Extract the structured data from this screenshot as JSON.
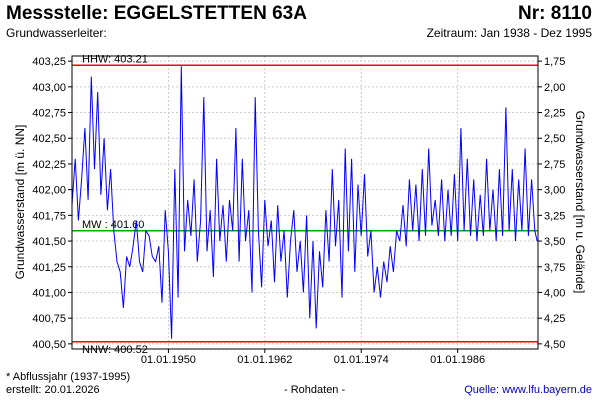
{
  "header": {
    "title": "Messstelle: EGGELSTETTEN 63A",
    "number": "Nr: 8110",
    "aquifer": "Grundwasserleiter:",
    "period": "Zeitraum: Jan 1938 - Dez 1995"
  },
  "footer": {
    "footnote": "* Abflussjahr (1937-1995)",
    "created": "erstellt:  20.01.2026",
    "rawdata": "- Rohdaten -",
    "source": "Quelle: www.lfu.bayern.de"
  },
  "colors": {
    "series": "#0000ff",
    "hhw": "#ff0000",
    "nnw": "#ff0000",
    "mw": "#00aa00",
    "grid": "#cccccc"
  },
  "chart_data": {
    "type": "line",
    "ylabel_left": "Grundwasserstand [m ü. NN]",
    "ylabel_right": "Grundwasserstand [m u. Gelände]",
    "xlim": [
      1938.0,
      1996.0
    ],
    "ylim": [
      400.45,
      403.3
    ],
    "grid": true,
    "x_ticks": [
      {
        "x": 1950.0,
        "label": "01.01.1950"
      },
      {
        "x": 1962.0,
        "label": "01.01.1962"
      },
      {
        "x": 1974.0,
        "label": "01.01.1974"
      },
      {
        "x": 1986.0,
        "label": "01.01.1986"
      }
    ],
    "y_ticks_left": [
      {
        "v": 400.5,
        "label": "400,50"
      },
      {
        "v": 400.75,
        "label": "400,75"
      },
      {
        "v": 401.0,
        "label": "401,00"
      },
      {
        "v": 401.25,
        "label": "401,25"
      },
      {
        "v": 401.5,
        "label": "401,50"
      },
      {
        "v": 401.75,
        "label": "401,75"
      },
      {
        "v": 402.0,
        "label": "402,00"
      },
      {
        "v": 402.25,
        "label": "402,25"
      },
      {
        "v": 402.5,
        "label": "402,50"
      },
      {
        "v": 402.75,
        "label": "402,75"
      },
      {
        "v": 403.0,
        "label": "403,00"
      },
      {
        "v": 403.25,
        "label": "403,25"
      }
    ],
    "y_ticks_right": [
      {
        "v": 400.5,
        "label": "4,50"
      },
      {
        "v": 400.75,
        "label": "4,25"
      },
      {
        "v": 401.0,
        "label": "4,00"
      },
      {
        "v": 401.25,
        "label": "3,75"
      },
      {
        "v": 401.5,
        "label": "3,50"
      },
      {
        "v": 401.75,
        "label": "3,25"
      },
      {
        "v": 402.0,
        "label": "3,00"
      },
      {
        "v": 402.25,
        "label": "2,75"
      },
      {
        "v": 402.5,
        "label": "2,50"
      },
      {
        "v": 402.75,
        "label": "2,25"
      },
      {
        "v": 403.0,
        "label": "2,00"
      },
      {
        "v": 403.25,
        "label": "1,75"
      }
    ],
    "reference_lines": [
      {
        "name": "HHW",
        "value": 403.21,
        "label": "HHW: 403.21"
      },
      {
        "name": "MW",
        "value": 401.6,
        "label": "MW : 401.60"
      },
      {
        "name": "NNW",
        "value": 400.52,
        "label": "NNW: 400.52"
      }
    ],
    "series": [
      {
        "x": [
          1938.0,
          1938.4,
          1938.8,
          1939.2,
          1939.6,
          1940.0,
          1940.4,
          1940.8,
          1941.2,
          1941.6,
          1942.0,
          1942.4,
          1942.8,
          1943.2,
          1943.6,
          1944.0,
          1944.4,
          1944.8,
          1945.2,
          1945.6,
          1946.0,
          1946.4,
          1946.8,
          1947.2,
          1947.6,
          1948.0,
          1948.4,
          1948.8,
          1949.2,
          1949.6,
          1950.0,
          1950.4,
          1950.8,
          1951.2,
          1951.6,
          1952.0,
          1952.4,
          1952.8,
          1953.2,
          1953.6,
          1954.0,
          1954.4,
          1954.8,
          1955.2,
          1955.6,
          1956.0,
          1956.4,
          1956.8,
          1957.2,
          1957.6,
          1958.0,
          1958.4,
          1958.8,
          1959.2,
          1959.6,
          1960.0,
          1960.4,
          1960.8,
          1961.2,
          1961.6,
          1962.0,
          1962.4,
          1962.8,
          1963.2,
          1963.6,
          1964.0,
          1964.4,
          1964.8,
          1965.2,
          1965.6,
          1966.0,
          1966.4,
          1966.8,
          1967.2,
          1967.6,
          1968.0,
          1968.4,
          1968.8,
          1969.2,
          1969.6,
          1970.0,
          1970.4,
          1970.8,
          1971.2,
          1971.6,
          1972.0,
          1972.4,
          1972.8,
          1973.2,
          1973.6,
          1974.0,
          1974.4,
          1974.8,
          1975.2,
          1975.6,
          1976.0,
          1976.4,
          1976.8,
          1977.2,
          1977.6,
          1978.0,
          1978.4,
          1978.8,
          1979.2,
          1979.6,
          1980.0,
          1980.4,
          1980.8,
          1981.2,
          1981.6,
          1982.0,
          1982.4,
          1982.8,
          1983.2,
          1983.6,
          1984.0,
          1984.4,
          1984.8,
          1985.2,
          1985.6,
          1986.0,
          1986.4,
          1986.8,
          1987.2,
          1987.6,
          1988.0,
          1988.4,
          1988.8,
          1989.2,
          1989.6,
          1990.0,
          1990.4,
          1990.8,
          1991.2,
          1991.6,
          1992.0,
          1992.4,
          1992.8,
          1993.2,
          1993.6,
          1994.0,
          1994.4,
          1994.8,
          1995.2,
          1995.6,
          1995.9
        ],
        "values": [
          401.85,
          402.3,
          401.7,
          402.1,
          402.6,
          401.9,
          403.1,
          402.2,
          402.95,
          401.95,
          402.5,
          401.8,
          402.2,
          401.6,
          401.3,
          401.2,
          400.85,
          401.35,
          401.25,
          401.45,
          401.7,
          401.3,
          401.2,
          401.6,
          401.55,
          401.35,
          401.3,
          401.45,
          400.9,
          401.8,
          401.4,
          400.55,
          402.2,
          400.95,
          403.2,
          401.4,
          401.9,
          401.55,
          402.1,
          401.3,
          401.7,
          402.9,
          401.4,
          401.8,
          401.15,
          402.3,
          401.5,
          401.85,
          401.3,
          401.9,
          401.6,
          402.6,
          401.3,
          402.3,
          401.5,
          401.8,
          401.0,
          402.9,
          401.6,
          401.05,
          401.9,
          401.45,
          401.7,
          401.1,
          401.85,
          401.3,
          401.6,
          400.95,
          401.5,
          401.8,
          401.2,
          401.5,
          401.0,
          401.75,
          400.75,
          401.5,
          400.65,
          401.4,
          401.05,
          401.8,
          401.3,
          402.2,
          401.45,
          401.9,
          400.95,
          402.4,
          401.4,
          402.3,
          401.2,
          402.05,
          401.55,
          402.15,
          401.35,
          401.6,
          401.0,
          401.25,
          400.95,
          401.3,
          401.1,
          401.45,
          401.2,
          401.6,
          401.5,
          401.85,
          401.45,
          402.1,
          401.6,
          402.05,
          401.5,
          402.2,
          401.55,
          402.4,
          401.65,
          401.9,
          401.55,
          402.1,
          401.5,
          402.0,
          401.55,
          402.15,
          401.5,
          402.6,
          401.6,
          402.3,
          401.55,
          402.1,
          401.5,
          401.95,
          401.55,
          402.3,
          401.6,
          402.0,
          401.5,
          402.2,
          401.55,
          402.8,
          401.6,
          402.2,
          401.5,
          402.1,
          401.6,
          402.4,
          401.55,
          402.1,
          401.6,
          401.5
        ]
      }
    ]
  }
}
